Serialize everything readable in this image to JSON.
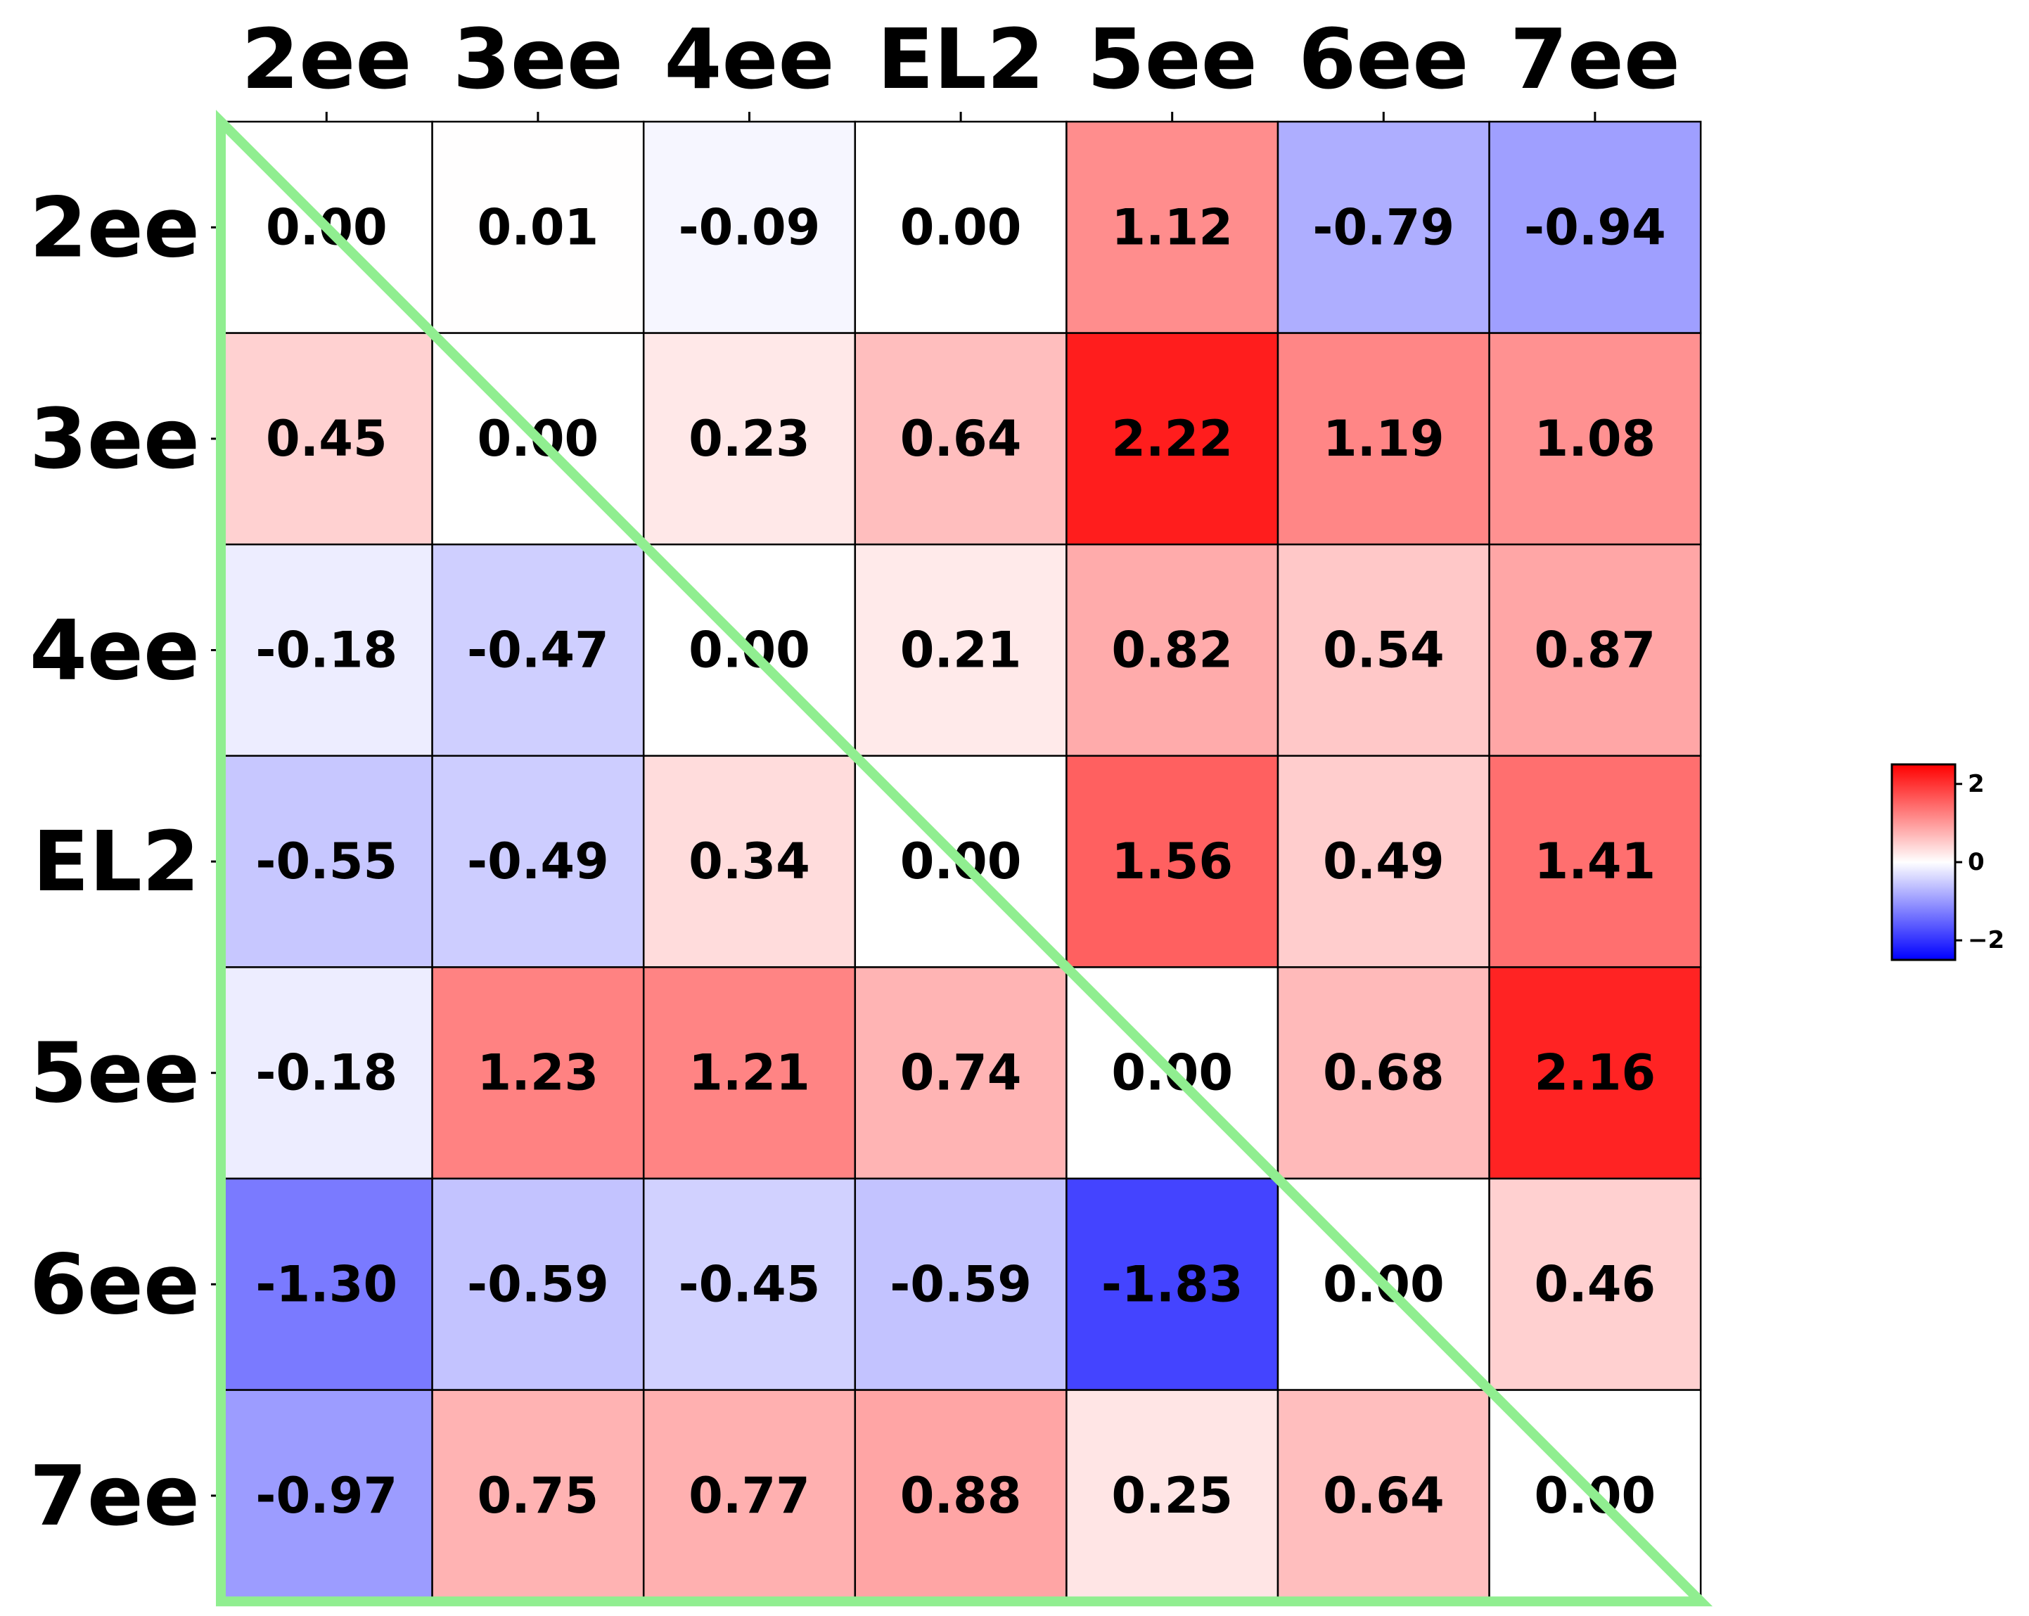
{
  "chart_data": {
    "type": "heatmap",
    "title": "",
    "xlabel": "",
    "ylabel": "",
    "x_labels": [
      "2ee",
      "3ee",
      "4ee",
      "EL2",
      "5ee",
      "6ee",
      "7ee"
    ],
    "y_labels": [
      "2ee",
      "3ee",
      "4ee",
      "EL2",
      "5ee",
      "6ee",
      "7ee"
    ],
    "x_tick_position": "top",
    "values": [
      [
        0.0,
        0.01,
        -0.09,
        0.0,
        1.12,
        -0.79,
        -0.94
      ],
      [
        0.45,
        0.0,
        0.23,
        0.64,
        2.22,
        1.19,
        1.08
      ],
      [
        -0.18,
        -0.47,
        0.0,
        0.21,
        0.82,
        0.54,
        0.87
      ],
      [
        -0.55,
        -0.49,
        0.34,
        0.0,
        1.56,
        0.49,
        1.41
      ],
      [
        -0.18,
        1.23,
        1.21,
        0.74,
        0.0,
        0.68,
        2.16
      ],
      [
        -1.3,
        -0.59,
        -0.45,
        -0.59,
        -1.83,
        0.0,
        0.46
      ],
      [
        -0.97,
        0.75,
        0.77,
        0.88,
        0.25,
        0.64,
        0.0
      ]
    ],
    "value_format": "2 decimals",
    "colormap": "bwr",
    "color_low": "#0000ff",
    "color_mid": "#ffffff",
    "color_high": "#ff0000",
    "vmin": -2.5,
    "vmax": 2.5,
    "grid": true,
    "colorbar": {
      "placement": "right",
      "ticks": [
        2,
        0,
        -2
      ],
      "tick_labels": [
        "2",
        "0",
        "−2"
      ]
    },
    "annotation": {
      "shape": "triangle",
      "corners": "top-left, bottom-left, bottom-right",
      "color": "#90ee90"
    }
  }
}
